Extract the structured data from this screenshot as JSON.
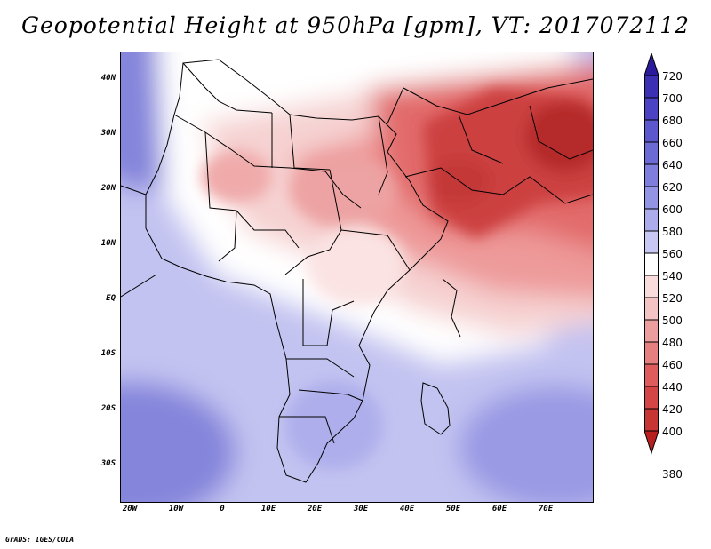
{
  "title": "Geopotential Height at 950hPa [gpm], VT: 2017072112",
  "credit": "GrADS: IGES/COLA",
  "map": {
    "lon_range": [
      -22,
      80
    ],
    "lat_range": [
      -37,
      45
    ],
    "lat_ticks": [
      {
        "value": 40,
        "label": "40N"
      },
      {
        "value": 30,
        "label": "30N"
      },
      {
        "value": 20,
        "label": "20N"
      },
      {
        "value": 10,
        "label": "10N"
      },
      {
        "value": 0,
        "label": "EQ"
      },
      {
        "value": -10,
        "label": "10S"
      },
      {
        "value": -20,
        "label": "20S"
      },
      {
        "value": -30,
        "label": "30S"
      }
    ],
    "lon_ticks": [
      {
        "value": -20,
        "label": "20W"
      },
      {
        "value": -10,
        "label": "10W"
      },
      {
        "value": 0,
        "label": "0"
      },
      {
        "value": 10,
        "label": "10E"
      },
      {
        "value": 20,
        "label": "20E"
      },
      {
        "value": 30,
        "label": "30E"
      },
      {
        "value": 40,
        "label": "40E"
      },
      {
        "value": 50,
        "label": "50E"
      },
      {
        "value": 60,
        "label": "60E"
      },
      {
        "value": 70,
        "label": "70E"
      }
    ]
  },
  "colorbar": {
    "labels": [
      "720",
      "700",
      "680",
      "660",
      "640",
      "620",
      "600",
      "580",
      "560",
      "540",
      "520",
      "500",
      "480",
      "460",
      "440",
      "420",
      "400",
      "380"
    ],
    "colors": [
      "#2a1a9c",
      "#3b30b4",
      "#4b43c4",
      "#5c57cc",
      "#6c6ad4",
      "#7f7edc",
      "#9494e4",
      "#acacec",
      "#c8c8f4",
      "#ffffff",
      "#fadcdc",
      "#f4c4c4",
      "#ec9e9e",
      "#e67f7f",
      "#de5c5c",
      "#d44545",
      "#c83535",
      "#b82020"
    ]
  }
}
